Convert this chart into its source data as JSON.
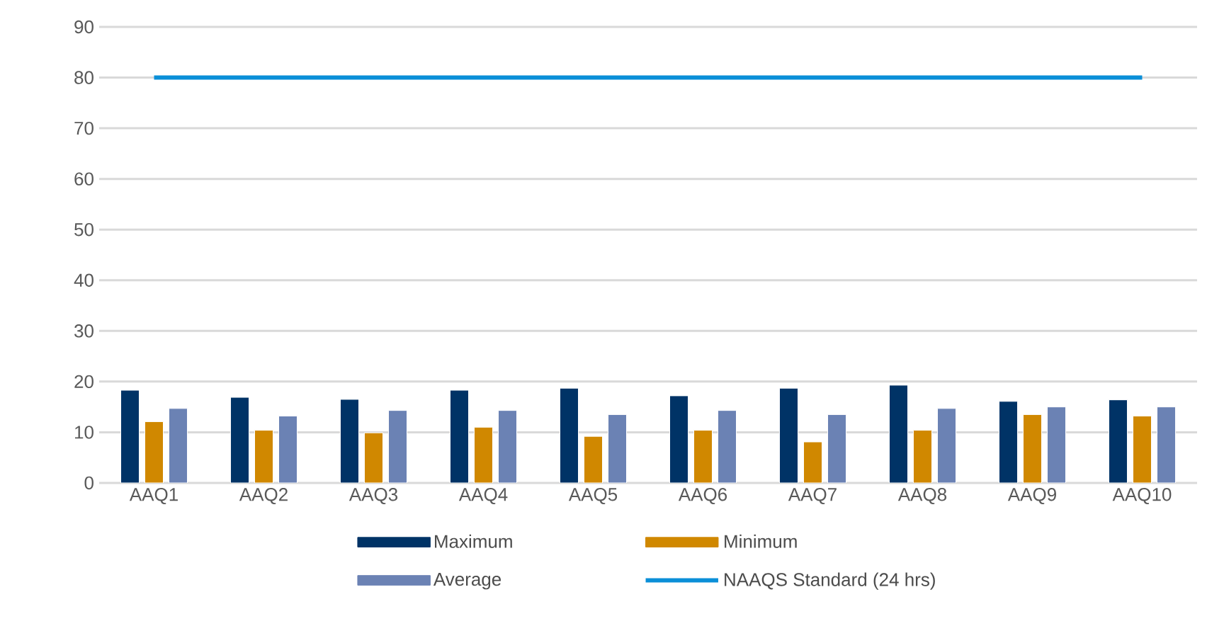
{
  "chart_data": {
    "type": "bar",
    "categories": [
      "AAQ1",
      "AAQ2",
      "AAQ3",
      "AAQ4",
      "AAQ5",
      "AAQ6",
      "AAQ7",
      "AAQ8",
      "AAQ9",
      "AAQ10"
    ],
    "series": [
      {
        "name": "Maximum",
        "color": "#003366",
        "values": [
          18.3,
          16.9,
          16.5,
          18.3,
          18.7,
          17.2,
          18.7,
          19.3,
          16.1,
          16.4
        ]
      },
      {
        "name": "Minimum",
        "color": "#d08800",
        "values": [
          12.1,
          10.4,
          9.9,
          11.0,
          9.2,
          10.4,
          8.1,
          10.4,
          13.5,
          13.2
        ]
      },
      {
        "name": "Average",
        "color": "#6b82b4",
        "values": [
          14.7,
          13.2,
          14.3,
          14.3,
          13.5,
          14.3,
          13.5,
          14.7,
          15.0,
          15.0
        ]
      },
      {
        "name": "NAAQS Standard (24 hrs)",
        "type": "line",
        "color": "#0a8fd8",
        "values": [
          80,
          80,
          80,
          80,
          80,
          80,
          80,
          80,
          80,
          80
        ]
      }
    ],
    "ylim": [
      0,
      90
    ],
    "yticks": [
      0,
      10,
      20,
      30,
      40,
      50,
      60,
      70,
      80,
      90
    ],
    "grid": "y",
    "legend": "bottom"
  }
}
